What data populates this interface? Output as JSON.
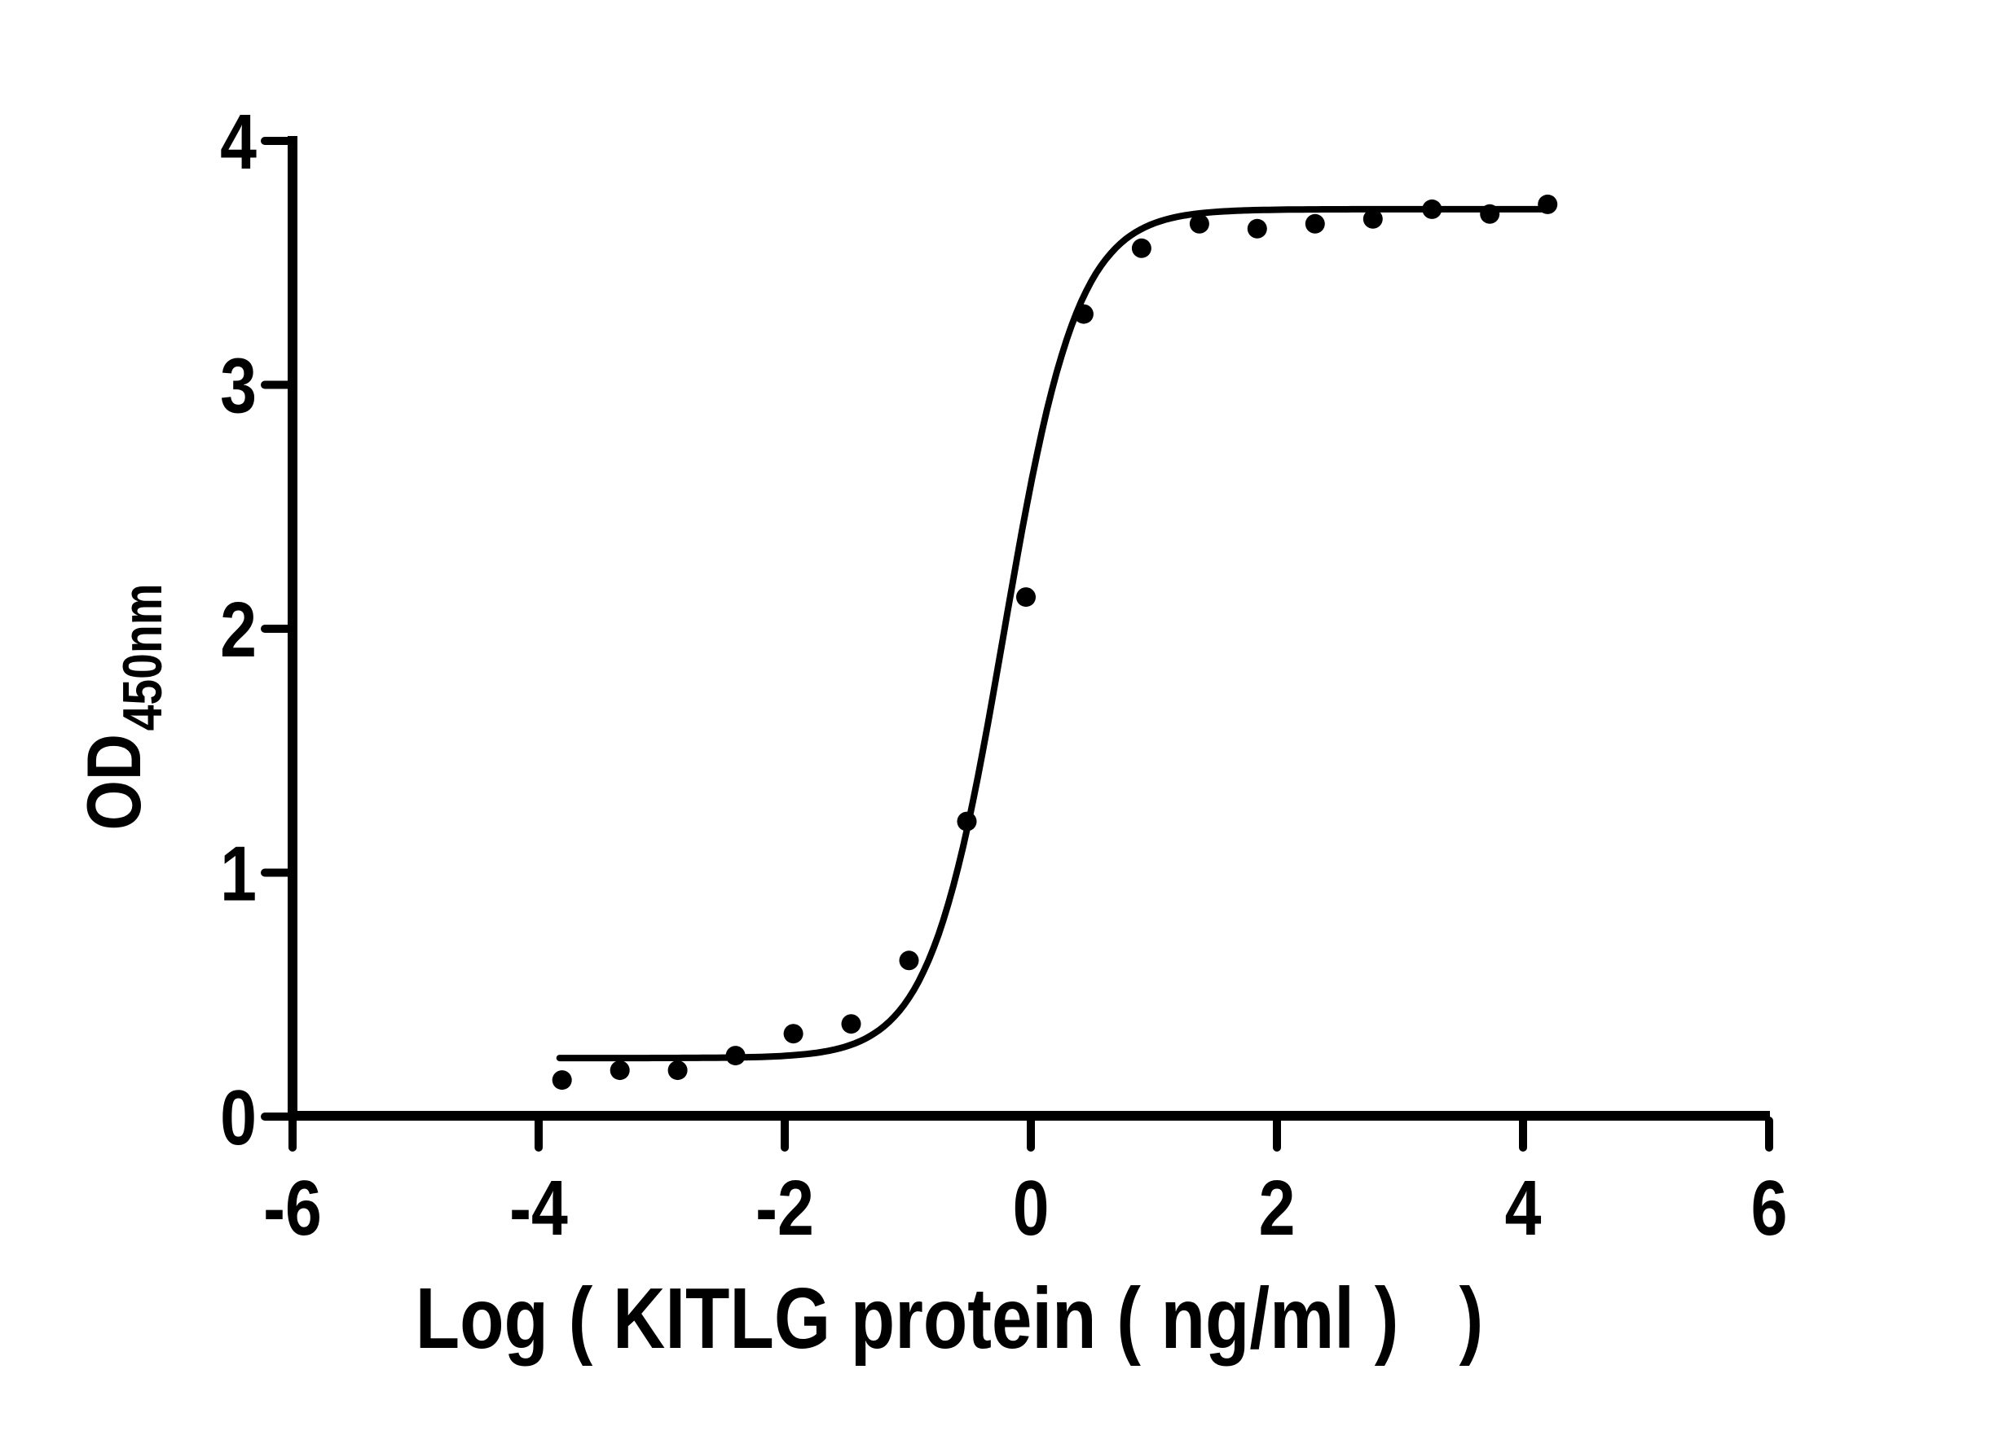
{
  "chart_data": {
    "type": "scatter",
    "title": "",
    "xlabel": "Log ( KITLG protein ( ng/ml )   )",
    "ylabel": "OD",
    "ylabel_subscript": "450nm",
    "xlim": [
      -6,
      6
    ],
    "ylim": [
      0,
      4
    ],
    "x_ticks": [
      "-6",
      "-4",
      "-2",
      "0",
      "2",
      "4",
      "6"
    ],
    "x_tick_values": [
      -6,
      -4,
      -2,
      0,
      2,
      4,
      6
    ],
    "y_ticks": [
      "0",
      "1",
      "2",
      "3",
      "4"
    ],
    "y_tick_values": [
      0,
      1,
      2,
      3,
      4
    ],
    "grid": false,
    "legend": "none",
    "background_color": "#ffffff",
    "axis_color": "#000000",
    "marker_color": "#000000",
    "curve_color": "#000000",
    "points": [
      {
        "log_conc": -3.81,
        "od": 0.15
      },
      {
        "log_conc": -3.34,
        "od": 0.19
      },
      {
        "log_conc": -2.87,
        "od": 0.19
      },
      {
        "log_conc": -2.4,
        "od": 0.25
      },
      {
        "log_conc": -1.93,
        "od": 0.34
      },
      {
        "log_conc": -1.46,
        "od": 0.38
      },
      {
        "log_conc": -0.99,
        "od": 0.64
      },
      {
        "log_conc": -0.52,
        "od": 1.21
      },
      {
        "log_conc": -0.04,
        "od": 2.13
      },
      {
        "log_conc": 0.43,
        "od": 3.29
      },
      {
        "log_conc": 0.9,
        "od": 3.56
      },
      {
        "log_conc": 1.37,
        "od": 3.66
      },
      {
        "log_conc": 1.84,
        "od": 3.64
      },
      {
        "log_conc": 2.31,
        "od": 3.66
      },
      {
        "log_conc": 2.78,
        "od": 3.68
      },
      {
        "log_conc": 3.26,
        "od": 3.72
      },
      {
        "log_conc": 3.73,
        "od": 3.7
      },
      {
        "log_conc": 4.2,
        "od": 3.74
      }
    ],
    "fit_curve": {
      "model": "4PL",
      "bottom": 0.24,
      "top": 3.72,
      "log_ec50": -0.22,
      "hill_slope": 1.45,
      "x_start": -3.83,
      "x_end": 4.21
    }
  }
}
